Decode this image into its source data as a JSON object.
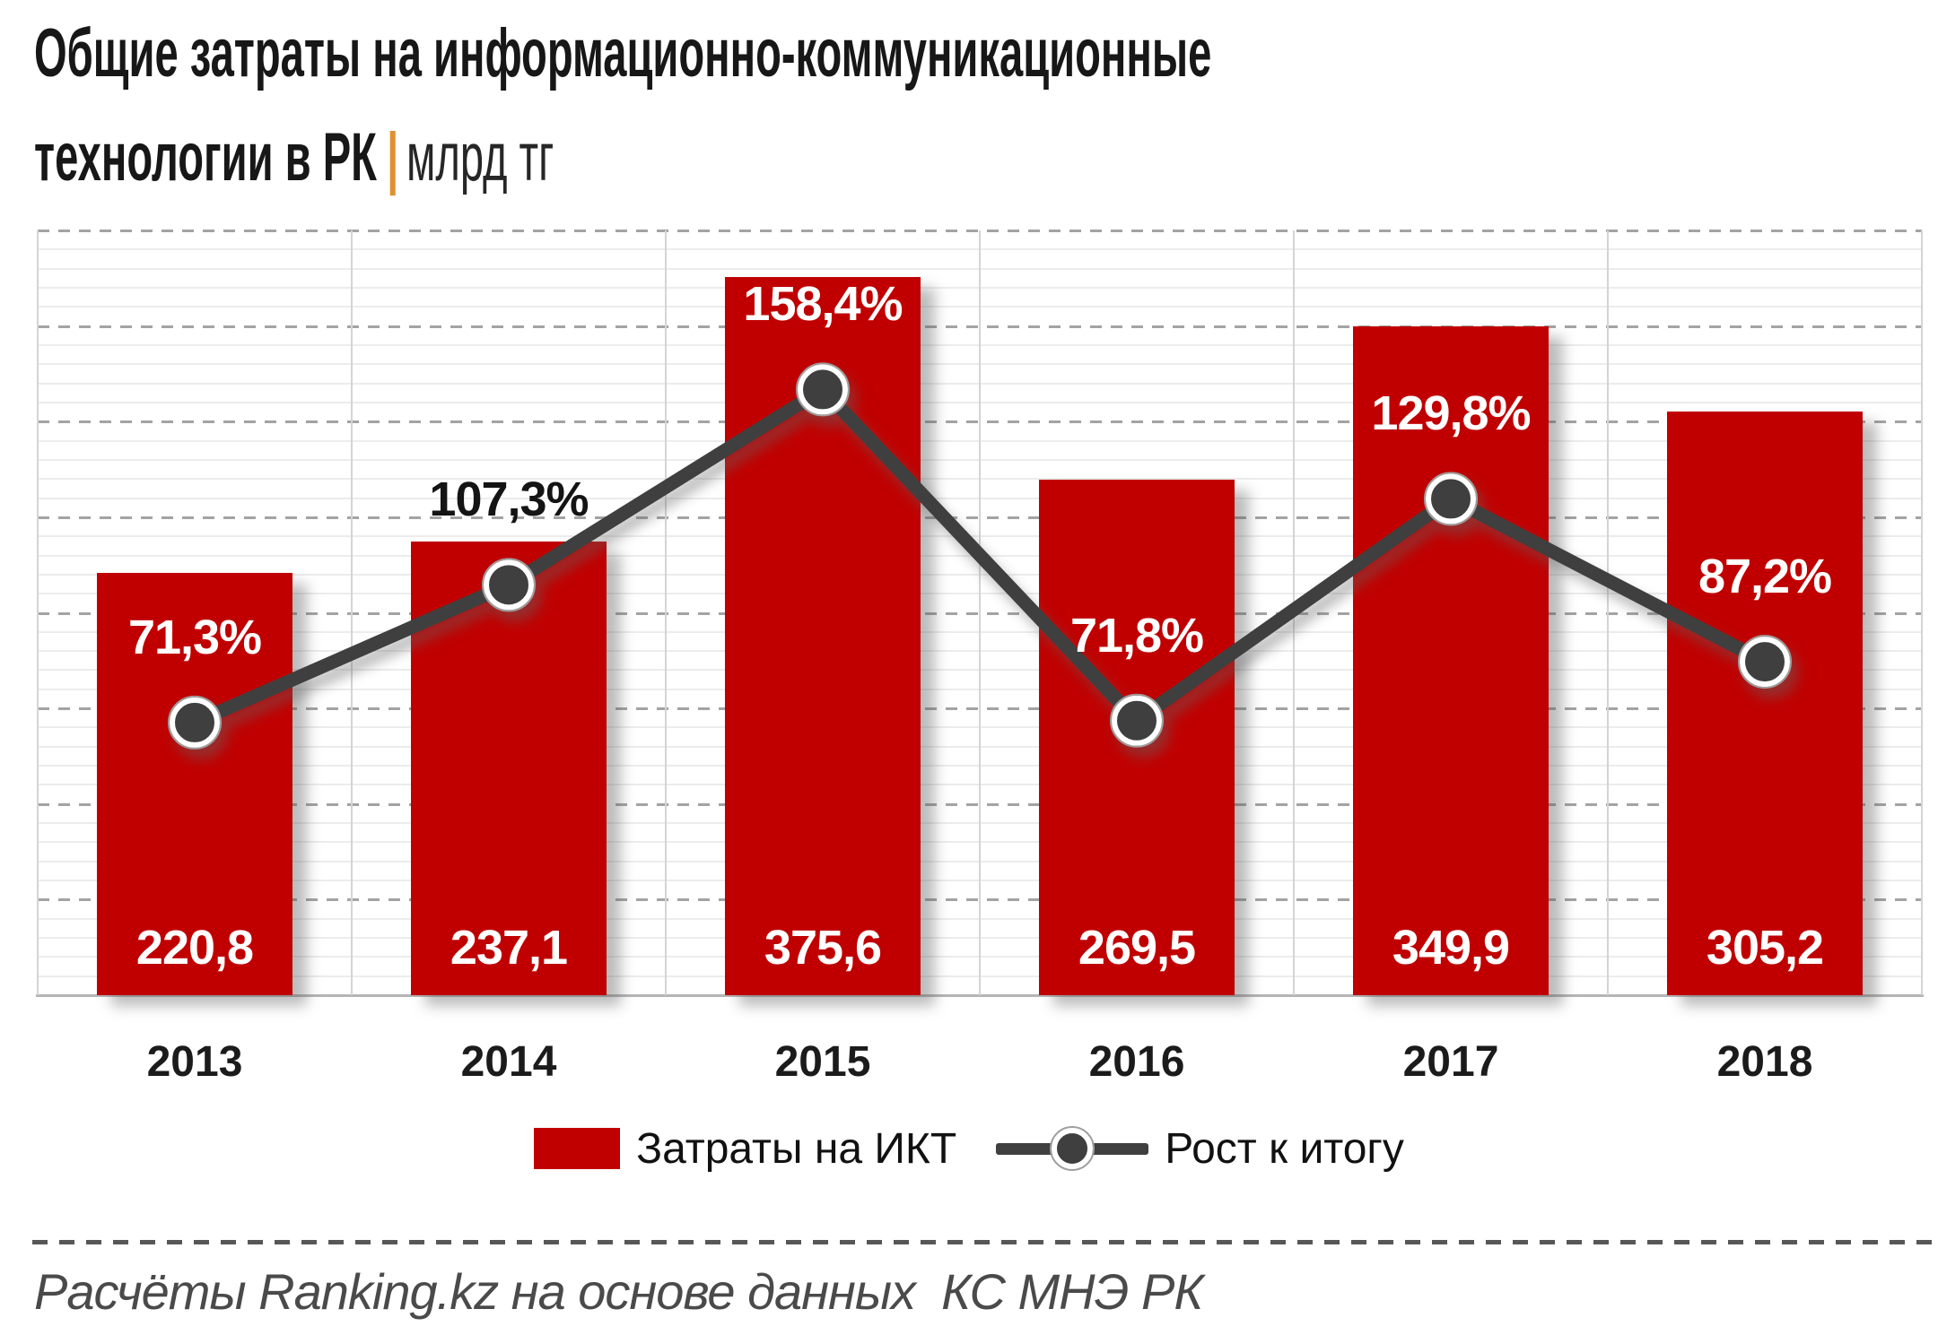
{
  "title": {
    "line1": "Общие затраты на информационно-коммуникационные",
    "line2_bold": "технологии в РК",
    "separator": "|",
    "unit": "млрд тг"
  },
  "legend": {
    "bars_label": "Затраты на ИКТ",
    "line_label": "Рост к итогу"
  },
  "footer": {
    "source": "Расчёты Ranking.kz на основе данных  КС МНЭ РК"
  },
  "colors": {
    "bar": "#c00000",
    "line": "#3f3f3f",
    "marker_fill": "#3f3f3f",
    "marker_ring": "#ffffff",
    "title_separator": "#e0912f",
    "label_on_bar": "#ffffff",
    "label_off_bar": "#141414",
    "grid_minor": "#ececec",
    "grid_major": "#a3a3a3",
    "footer_text": "#4a4a4a"
  },
  "chart_data": {
    "type": "bar+line",
    "title": "Общие затраты на информационно-коммуникационные технологии в РК",
    "unit": "млрд тг",
    "categories": [
      "2013",
      "2014",
      "2015",
      "2016",
      "2017",
      "2018"
    ],
    "series": [
      {
        "name": "Затраты на ИКТ",
        "type": "bar",
        "values": [
          220.8,
          237.1,
          375.6,
          269.5,
          349.9,
          305.2
        ],
        "labels": [
          "220,8",
          "237,1",
          "375,6",
          "269,5",
          "349,9",
          "305,2"
        ],
        "axis": "primary"
      },
      {
        "name": "Рост к итогу",
        "type": "line",
        "values": [
          71.3,
          107.3,
          158.4,
          71.8,
          129.8,
          87.2
        ],
        "labels": [
          "71,3%",
          "107,3%",
          "158,4%",
          "71,8%",
          "129,8%",
          "87,2%"
        ],
        "axis": "secondary"
      }
    ],
    "value_axis": {
      "min": 0,
      "max": 400,
      "major_unit": 50,
      "minor_unit": 10,
      "labels_visible": false
    },
    "secondary_axis": {
      "min": 0,
      "max": 200,
      "labels_visible": false
    },
    "grid": {
      "horizontal_minor": true,
      "horizontal_major_dashed": true,
      "vertical_category_separators": true
    },
    "legend_position": "bottom"
  }
}
